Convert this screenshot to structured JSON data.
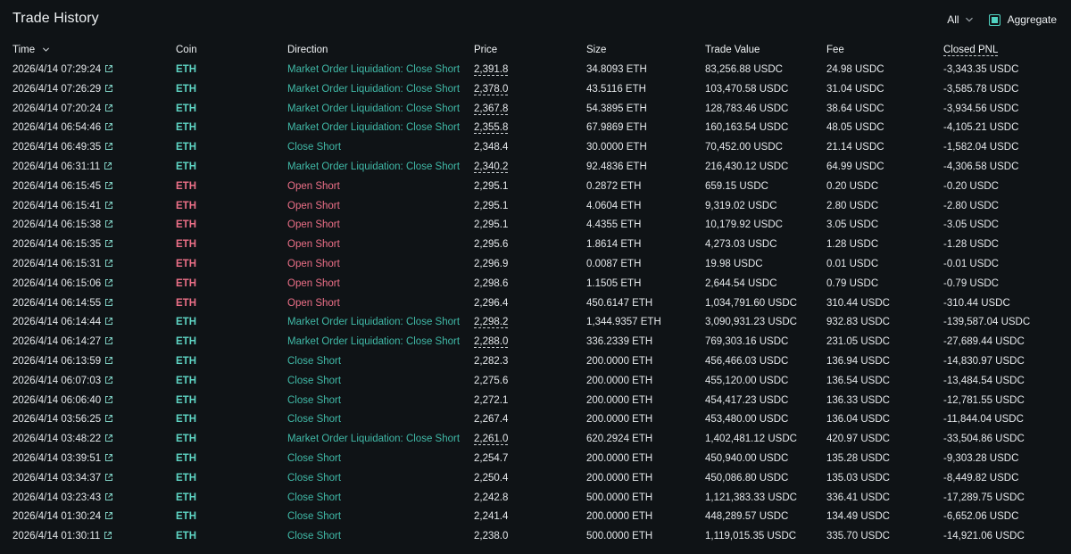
{
  "header": {
    "title": "Trade History",
    "filter_value": "All",
    "aggregate_label": "Aggregate",
    "aggregate_checked": true
  },
  "colors": {
    "background": "#0f1316",
    "accent_teal": "#50d2c1",
    "buy_text": "#40b9a7",
    "sell_text": "#ed7088"
  },
  "table": {
    "columns": {
      "time": "Time",
      "coin": "Coin",
      "direction": "Direction",
      "price": "Price",
      "size": "Size",
      "trade_value": "Trade Value",
      "fee": "Fee",
      "closed_pnl": "Closed PNL"
    },
    "rows": [
      {
        "time": "2026/4/14 07:29:24",
        "coin": "ETH",
        "direction": "Market Order Liquidation: Close Short",
        "side": "long",
        "price": "2,391.8",
        "price_dashed": true,
        "size": "34.8093 ETH",
        "trade_value": "83,256.88 USDC",
        "fee": "24.98 USDC",
        "closed_pnl": "-3,343.35 USDC"
      },
      {
        "time": "2026/4/14 07:26:29",
        "coin": "ETH",
        "direction": "Market Order Liquidation: Close Short",
        "side": "long",
        "price": "2,378.0",
        "price_dashed": true,
        "size": "43.5116 ETH",
        "trade_value": "103,470.58 USDC",
        "fee": "31.04 USDC",
        "closed_pnl": "-3,585.78 USDC"
      },
      {
        "time": "2026/4/14 07:20:24",
        "coin": "ETH",
        "direction": "Market Order Liquidation: Close Short",
        "side": "long",
        "price": "2,367.8",
        "price_dashed": true,
        "size": "54.3895 ETH",
        "trade_value": "128,783.46 USDC",
        "fee": "38.64 USDC",
        "closed_pnl": "-3,934.56 USDC"
      },
      {
        "time": "2026/4/14 06:54:46",
        "coin": "ETH",
        "direction": "Market Order Liquidation: Close Short",
        "side": "long",
        "price": "2,355.8",
        "price_dashed": true,
        "size": "67.9869 ETH",
        "trade_value": "160,163.54 USDC",
        "fee": "48.05 USDC",
        "closed_pnl": "-4,105.21 USDC"
      },
      {
        "time": "2026/4/14 06:49:35",
        "coin": "ETH",
        "direction": "Close Short",
        "side": "long",
        "price": "2,348.4",
        "price_dashed": false,
        "size": "30.0000 ETH",
        "trade_value": "70,452.00 USDC",
        "fee": "21.14 USDC",
        "closed_pnl": "-1,582.04 USDC"
      },
      {
        "time": "2026/4/14 06:31:11",
        "coin": "ETH",
        "direction": "Market Order Liquidation: Close Short",
        "side": "long",
        "price": "2,340.2",
        "price_dashed": true,
        "size": "92.4836 ETH",
        "trade_value": "216,430.12 USDC",
        "fee": "64.99 USDC",
        "closed_pnl": "-4,306.58 USDC"
      },
      {
        "time": "2026/4/14 06:15:45",
        "coin": "ETH",
        "direction": "Open Short",
        "side": "short",
        "price": "2,295.1",
        "price_dashed": false,
        "size": "0.2872 ETH",
        "trade_value": "659.15 USDC",
        "fee": "0.20 USDC",
        "closed_pnl": "-0.20 USDC"
      },
      {
        "time": "2026/4/14 06:15:41",
        "coin": "ETH",
        "direction": "Open Short",
        "side": "short",
        "price": "2,295.1",
        "price_dashed": false,
        "size": "4.0604 ETH",
        "trade_value": "9,319.02 USDC",
        "fee": "2.80 USDC",
        "closed_pnl": "-2.80 USDC"
      },
      {
        "time": "2026/4/14 06:15:38",
        "coin": "ETH",
        "direction": "Open Short",
        "side": "short",
        "price": "2,295.1",
        "price_dashed": false,
        "size": "4.4355 ETH",
        "trade_value": "10,179.92 USDC",
        "fee": "3.05 USDC",
        "closed_pnl": "-3.05 USDC"
      },
      {
        "time": "2026/4/14 06:15:35",
        "coin": "ETH",
        "direction": "Open Short",
        "side": "short",
        "price": "2,295.6",
        "price_dashed": false,
        "size": "1.8614 ETH",
        "trade_value": "4,273.03 USDC",
        "fee": "1.28 USDC",
        "closed_pnl": "-1.28 USDC"
      },
      {
        "time": "2026/4/14 06:15:31",
        "coin": "ETH",
        "direction": "Open Short",
        "side": "short",
        "price": "2,296.9",
        "price_dashed": false,
        "size": "0.0087 ETH",
        "trade_value": "19.98 USDC",
        "fee": "0.01 USDC",
        "closed_pnl": "-0.01 USDC"
      },
      {
        "time": "2026/4/14 06:15:06",
        "coin": "ETH",
        "direction": "Open Short",
        "side": "short",
        "price": "2,298.6",
        "price_dashed": false,
        "size": "1.1505 ETH",
        "trade_value": "2,644.54 USDC",
        "fee": "0.79 USDC",
        "closed_pnl": "-0.79 USDC"
      },
      {
        "time": "2026/4/14 06:14:55",
        "coin": "ETH",
        "direction": "Open Short",
        "side": "short",
        "price": "2,296.4",
        "price_dashed": false,
        "size": "450.6147 ETH",
        "trade_value": "1,034,791.60 USDC",
        "fee": "310.44 USDC",
        "closed_pnl": "-310.44 USDC"
      },
      {
        "time": "2026/4/14 06:14:44",
        "coin": "ETH",
        "direction": "Market Order Liquidation: Close Short",
        "side": "long",
        "price": "2,298.2",
        "price_dashed": true,
        "size": "1,344.9357 ETH",
        "trade_value": "3,090,931.23 USDC",
        "fee": "932.83 USDC",
        "closed_pnl": "-139,587.04 USDC"
      },
      {
        "time": "2026/4/14 06:14:27",
        "coin": "ETH",
        "direction": "Market Order Liquidation: Close Short",
        "side": "long",
        "price": "2,288.0",
        "price_dashed": true,
        "size": "336.2339 ETH",
        "trade_value": "769,303.16 USDC",
        "fee": "231.05 USDC",
        "closed_pnl": "-27,689.44 USDC"
      },
      {
        "time": "2026/4/14 06:13:59",
        "coin": "ETH",
        "direction": "Close Short",
        "side": "long",
        "price": "2,282.3",
        "price_dashed": false,
        "size": "200.0000 ETH",
        "trade_value": "456,466.03 USDC",
        "fee": "136.94 USDC",
        "closed_pnl": "-14,830.97 USDC"
      },
      {
        "time": "2026/4/14 06:07:03",
        "coin": "ETH",
        "direction": "Close Short",
        "side": "long",
        "price": "2,275.6",
        "price_dashed": false,
        "size": "200.0000 ETH",
        "trade_value": "455,120.00 USDC",
        "fee": "136.54 USDC",
        "closed_pnl": "-13,484.54 USDC"
      },
      {
        "time": "2026/4/14 06:06:40",
        "coin": "ETH",
        "direction": "Close Short",
        "side": "long",
        "price": "2,272.1",
        "price_dashed": false,
        "size": "200.0000 ETH",
        "trade_value": "454,417.23 USDC",
        "fee": "136.33 USDC",
        "closed_pnl": "-12,781.55 USDC"
      },
      {
        "time": "2026/4/14 03:56:25",
        "coin": "ETH",
        "direction": "Close Short",
        "side": "long",
        "price": "2,267.4",
        "price_dashed": false,
        "size": "200.0000 ETH",
        "trade_value": "453,480.00 USDC",
        "fee": "136.04 USDC",
        "closed_pnl": "-11,844.04 USDC"
      },
      {
        "time": "2026/4/14 03:48:22",
        "coin": "ETH",
        "direction": "Market Order Liquidation: Close Short",
        "side": "long",
        "price": "2,261.0",
        "price_dashed": true,
        "size": "620.2924 ETH",
        "trade_value": "1,402,481.12 USDC",
        "fee": "420.97 USDC",
        "closed_pnl": "-33,504.86 USDC"
      },
      {
        "time": "2026/4/14 03:39:51",
        "coin": "ETH",
        "direction": "Close Short",
        "side": "long",
        "price": "2,254.7",
        "price_dashed": false,
        "size": "200.0000 ETH",
        "trade_value": "450,940.00 USDC",
        "fee": "135.28 USDC",
        "closed_pnl": "-9,303.28 USDC"
      },
      {
        "time": "2026/4/14 03:34:37",
        "coin": "ETH",
        "direction": "Close Short",
        "side": "long",
        "price": "2,250.4",
        "price_dashed": false,
        "size": "200.0000 ETH",
        "trade_value": "450,086.80 USDC",
        "fee": "135.03 USDC",
        "closed_pnl": "-8,449.82 USDC"
      },
      {
        "time": "2026/4/14 03:23:43",
        "coin": "ETH",
        "direction": "Close Short",
        "side": "long",
        "price": "2,242.8",
        "price_dashed": false,
        "size": "500.0000 ETH",
        "trade_value": "1,121,383.33 USDC",
        "fee": "336.41 USDC",
        "closed_pnl": "-17,289.75 USDC"
      },
      {
        "time": "2026/4/14 01:30:24",
        "coin": "ETH",
        "direction": "Close Short",
        "side": "long",
        "price": "2,241.4",
        "price_dashed": false,
        "size": "200.0000 ETH",
        "trade_value": "448,289.57 USDC",
        "fee": "134.49 USDC",
        "closed_pnl": "-6,652.06 USDC"
      },
      {
        "time": "2026/4/14 01:30:11",
        "coin": "ETH",
        "direction": "Close Short",
        "side": "long",
        "price": "2,238.0",
        "price_dashed": false,
        "size": "500.0000 ETH",
        "trade_value": "1,119,015.35 USDC",
        "fee": "335.70 USDC",
        "closed_pnl": "-14,921.06 USDC"
      }
    ]
  }
}
